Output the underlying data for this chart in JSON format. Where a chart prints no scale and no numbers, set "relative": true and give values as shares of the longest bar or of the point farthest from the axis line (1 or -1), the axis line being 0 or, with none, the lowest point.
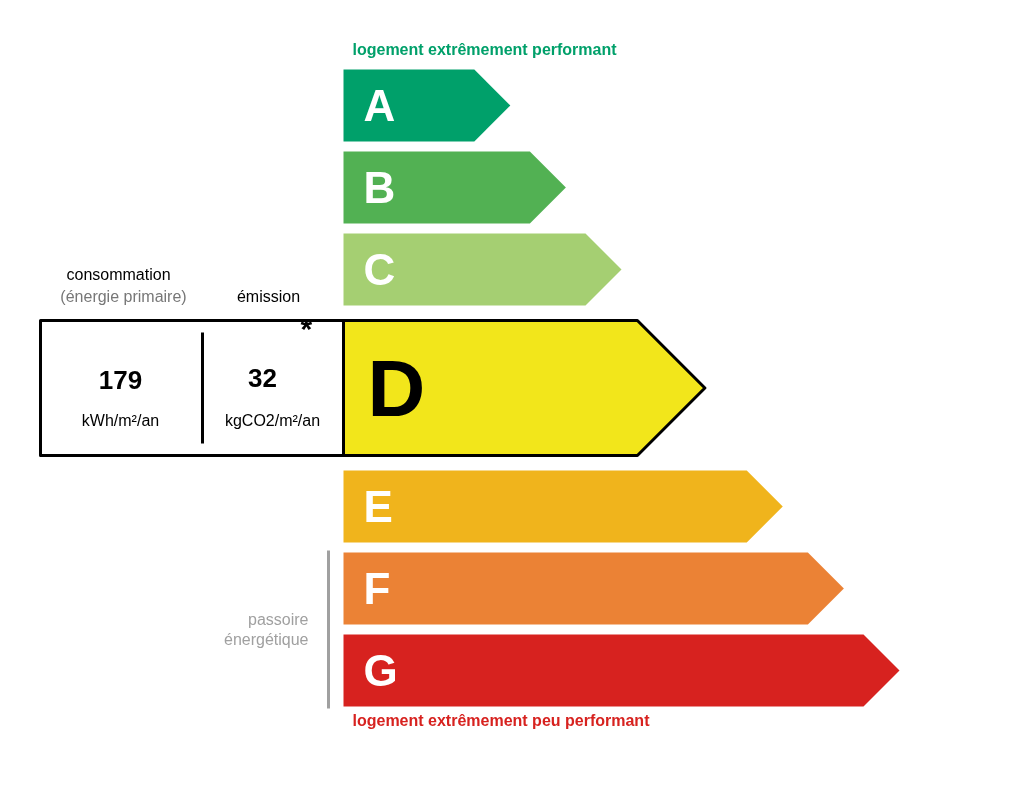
{
  "chart_data": {
    "type": "bar",
    "orientation": "horizontal",
    "relative": true,
    "title": "logement extrêmement performant",
    "categories": [
      "A",
      "B",
      "C",
      "D",
      "E",
      "F",
      "G"
    ],
    "values": [
      0.3,
      0.4,
      0.5,
      0.65,
      0.79,
      0.9,
      1
    ],
    "colors": [
      "#00a06a",
      "#52b153",
      "#a5cf72",
      "#f2e61b",
      "#f0b41c",
      "#eb8235",
      "#d7221f"
    ],
    "annotations": [
      "consommation",
      "(énergie primaire)",
      "émission",
      "179",
      "kWh/m²/an",
      "32",
      "*",
      "kgCO2/m²/an",
      "logement extrêmement peu performant",
      "passoire énergétique"
    ]
  }
}
